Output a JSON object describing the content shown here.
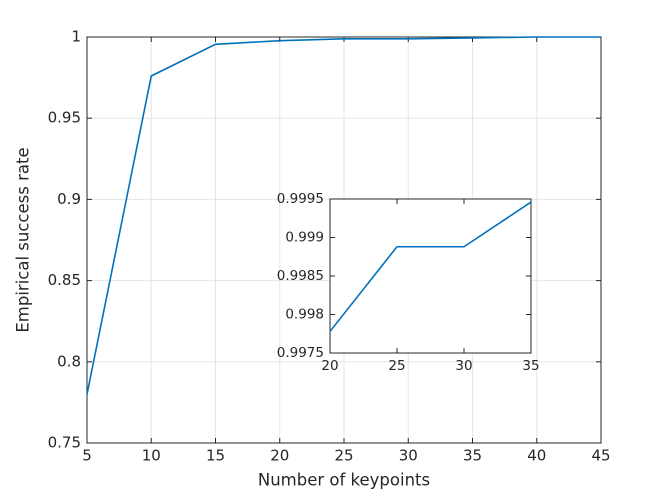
{
  "chart_data": [
    {
      "type": "line",
      "xlabel": "Number of keypoints",
      "ylabel": "Empirical success rate",
      "x": [
        5,
        10,
        15,
        20,
        25,
        30,
        35,
        40,
        45
      ],
      "values": [
        0.78,
        0.976,
        0.9955,
        0.99775,
        0.99888,
        0.99888,
        0.99945,
        1.0,
        1.0
      ],
      "color": "#0072bd",
      "xlim": [
        5,
        45
      ],
      "xticks": [
        5,
        10,
        15,
        20,
        25,
        30,
        35,
        40,
        45
      ],
      "ylim": [
        0.75,
        1
      ],
      "yticks": [
        0.75,
        0.8,
        0.85,
        0.9,
        0.95,
        1
      ],
      "grid": true
    },
    {
      "type": "line",
      "x": [
        20,
        25,
        30,
        35
      ],
      "values": [
        0.99778,
        0.99888,
        0.99888,
        0.99946
      ],
      "color": "#0072bd",
      "xlim": [
        20,
        35
      ],
      "xticks": [
        20,
        25,
        30,
        35
      ],
      "ylim": [
        0.9975,
        0.9995
      ],
      "yticks": [
        0.9975,
        0.998,
        0.9985,
        0.999,
        0.9995
      ],
      "grid": false
    }
  ]
}
